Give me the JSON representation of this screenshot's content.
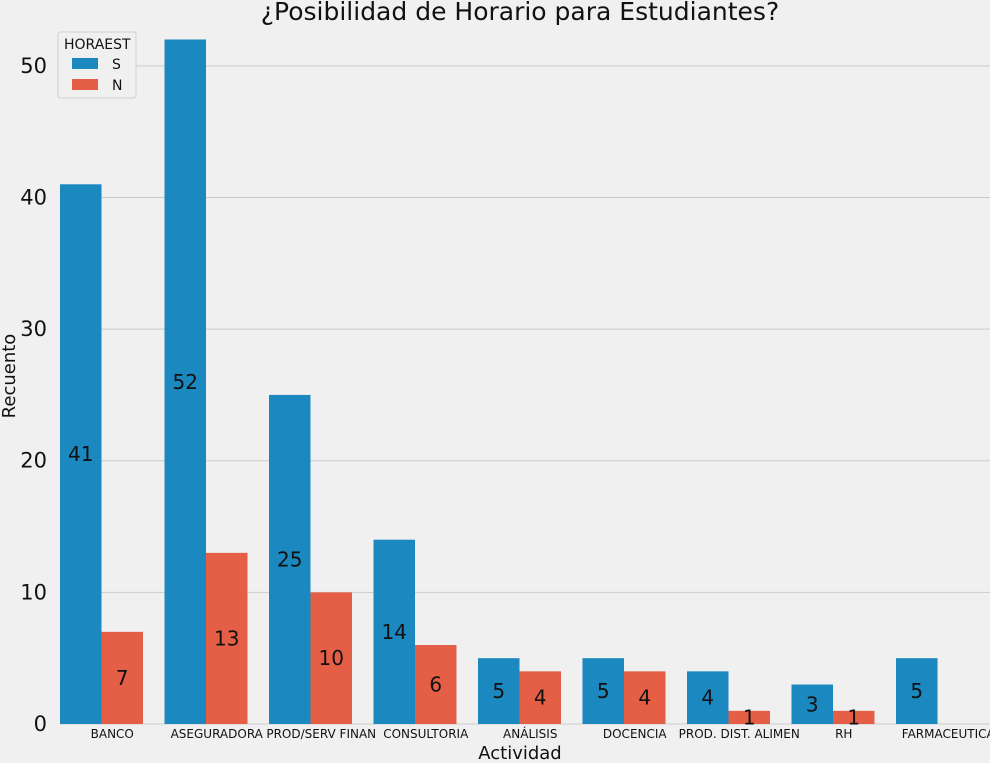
{
  "colors": {
    "background": "#f0f0f0",
    "grid": "#cbcbcb",
    "S": "#1b88bf",
    "N": "#e55f47",
    "text": "#111111"
  },
  "chart_data": {
    "type": "bar",
    "title": "¿Posibilidad de Horario para Estudiantes?",
    "xlabel": "Actividad",
    "ylabel": "Recuento",
    "ylim": [
      0,
      52
    ],
    "yticks": [
      0,
      10,
      20,
      30,
      40,
      50
    ],
    "grid": true,
    "legend": {
      "title": "HORAEST",
      "placement": "top-left",
      "entries": [
        "S",
        "N"
      ]
    },
    "categories": [
      "BANCO",
      "ASEGURADORA",
      "PROD/SERV FINAN",
      "CONSULTORIA",
      "ANÁLISIS",
      "DOCENCIA",
      "PROD. DIST. ALIMEN",
      "RH",
      "FARMACEUTICA"
    ],
    "series": [
      {
        "name": "S",
        "values": [
          41,
          52,
          25,
          14,
          5,
          5,
          4,
          3,
          5
        ]
      },
      {
        "name": "N",
        "values": [
          7,
          13,
          10,
          6,
          4,
          4,
          1,
          1,
          null
        ]
      }
    ]
  }
}
